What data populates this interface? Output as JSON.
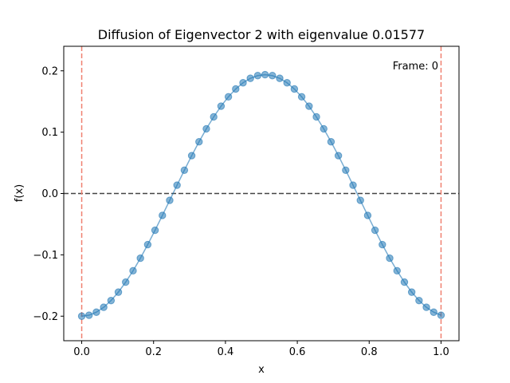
{
  "chart_data": {
    "type": "line",
    "title": "Diffusion of Eigenvector 2 with eigenvalue 0.01577",
    "xlabel": "x",
    "ylabel": "f(x)",
    "xlim": [
      -0.05,
      1.05
    ],
    "ylim": [
      -0.24,
      0.24
    ],
    "x_ticks": [
      0.0,
      0.2,
      0.4,
      0.6,
      0.8,
      1.0
    ],
    "x_tick_labels": [
      "0.0",
      "0.2",
      "0.4",
      "0.6",
      "0.8",
      "1.0"
    ],
    "y_ticks": [
      -0.2,
      -0.1,
      0.0,
      0.1,
      0.2
    ],
    "y_tick_labels": [
      "−0.2",
      "−0.1",
      "0.0",
      "0.1",
      "0.2"
    ],
    "annotation": "Frame: 0",
    "grid": false,
    "reference_lines": {
      "horizontal": [
        {
          "y": 0.0,
          "color": "#444444",
          "style": "dashed"
        }
      ],
      "vertical": [
        {
          "x": 0.0,
          "color": "#f08070",
          "style": "dashed"
        },
        {
          "x": 1.0,
          "color": "#f08070",
          "style": "dashed"
        }
      ]
    },
    "series": [
      {
        "color": "#1f77b4",
        "marker": "circle",
        "x": [
          0.0,
          0.0204,
          0.0408,
          0.0612,
          0.0816,
          0.102,
          0.1224,
          0.1429,
          0.1633,
          0.1837,
          0.2041,
          0.2245,
          0.2449,
          0.2653,
          0.2857,
          0.3061,
          0.3265,
          0.3469,
          0.3673,
          0.3878,
          0.4082,
          0.4286,
          0.449,
          0.4694,
          0.4898,
          0.5102,
          0.5306,
          0.551,
          0.5714,
          0.5918,
          0.6122,
          0.6327,
          0.6531,
          0.6735,
          0.6939,
          0.7143,
          0.7347,
          0.7551,
          0.7755,
          0.7959,
          0.8163,
          0.8367,
          0.8571,
          0.8776,
          0.898,
          0.9184,
          0.9388,
          0.9592,
          0.9796,
          1.0
        ],
        "y": [
          -0.2,
          -0.1984,
          -0.1935,
          -0.1855,
          -0.1745,
          -0.1608,
          -0.1445,
          -0.126,
          -0.1055,
          -0.0833,
          -0.0599,
          -0.0357,
          -0.0111,
          0.0136,
          0.038,
          0.0617,
          0.0843,
          0.1055,
          0.1249,
          0.1424,
          0.1576,
          0.1704,
          0.1805,
          0.1878,
          0.1922,
          0.1937,
          0.1922,
          0.1878,
          0.1805,
          0.1704,
          0.1576,
          0.1424,
          0.1249,
          0.1055,
          0.0843,
          0.0617,
          0.038,
          0.0136,
          -0.0111,
          -0.0357,
          -0.0599,
          -0.0833,
          -0.1055,
          -0.126,
          -0.1445,
          -0.1608,
          -0.1745,
          -0.1855,
          -0.1935,
          -0.1984
        ]
      }
    ]
  }
}
